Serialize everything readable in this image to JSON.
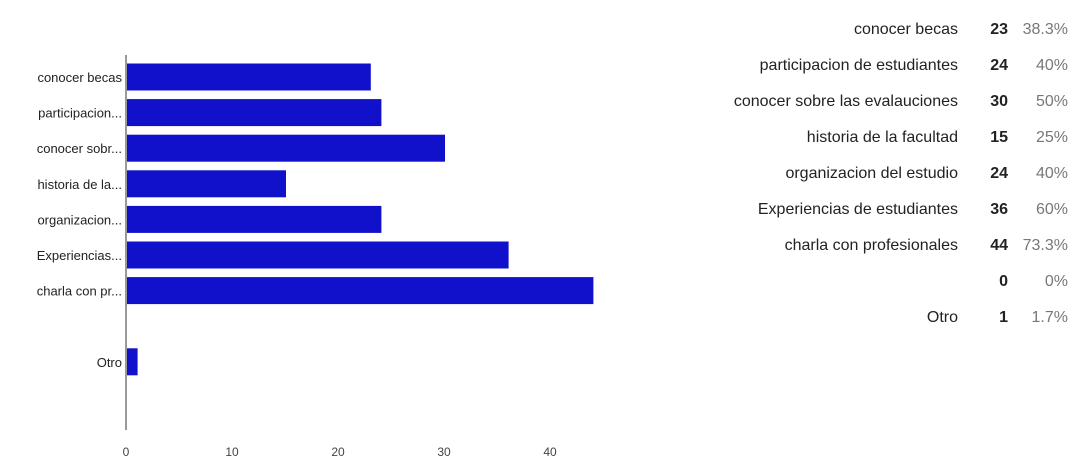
{
  "chart_data": {
    "type": "bar",
    "orientation": "horizontal",
    "categories": [
      "conocer becas",
      "participacion...",
      "conocer sobr...",
      "historia de la...",
      "organizacion...",
      "Experiencias...",
      "charla con pr...",
      "",
      "Otro"
    ],
    "values": [
      23,
      24,
      30,
      15,
      24,
      36,
      44,
      0,
      1
    ],
    "xlim": [
      0,
      45
    ],
    "xticks": [
      0,
      10,
      20,
      30,
      40
    ],
    "grid": false,
    "legend": "none",
    "colors": {
      "bar": "#1111cc",
      "axis": "#333333"
    }
  },
  "summary": {
    "rows": [
      {
        "label": "conocer becas",
        "count": "23",
        "percent": "38.3%"
      },
      {
        "label": "participacion de estudiantes",
        "count": "24",
        "percent": "40%"
      },
      {
        "label": "conocer sobre las evalauciones",
        "count": "30",
        "percent": "50%"
      },
      {
        "label": "historia de la facultad",
        "count": "15",
        "percent": "25%"
      },
      {
        "label": "organizacion del estudio",
        "count": "24",
        "percent": "40%"
      },
      {
        "label": "Experiencias de estudiantes",
        "count": "36",
        "percent": "60%"
      },
      {
        "label": "charla con profesionales",
        "count": "44",
        "percent": "73.3%"
      },
      {
        "label": "",
        "count": "0",
        "percent": "0%"
      },
      {
        "label": "Otro",
        "count": "1",
        "percent": "1.7%"
      }
    ]
  }
}
